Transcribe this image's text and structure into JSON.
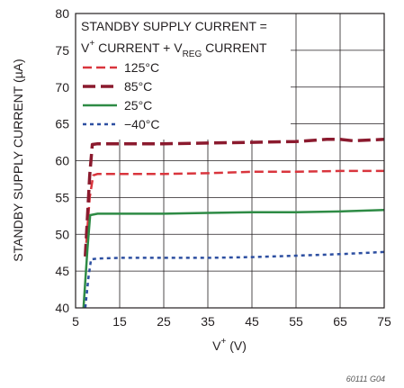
{
  "chart_data": {
    "type": "line",
    "xlabel": "V+ (V)",
    "xlabel_parts": {
      "base": "V",
      "sup": "+",
      "rest": " (V)"
    },
    "ylabel": "STANDBY SUPPLY CURRENT (µA)",
    "xlim": [
      5,
      75
    ],
    "ylim": [
      40,
      80
    ],
    "x_ticks": [
      5,
      15,
      25,
      35,
      45,
      55,
      65,
      75
    ],
    "y_ticks": [
      40,
      45,
      50,
      55,
      60,
      65,
      70,
      75,
      80
    ],
    "x_tick_labels": [
      "5",
      "15",
      "25",
      "35",
      "45",
      "55",
      "65",
      "75"
    ],
    "y_tick_labels": [
      "40",
      "45",
      "50",
      "55",
      "60",
      "65",
      "70",
      "75",
      "80"
    ],
    "grid": true,
    "legend_position": "top-left",
    "annotation": {
      "line1": "STANDBY SUPPLY CURRENT =",
      "line2_parts": [
        "V",
        "+",
        " CURRENT + V",
        "REG",
        " CURRENT"
      ]
    },
    "figure_note": "60111 G04",
    "series": [
      {
        "name": "125°C",
        "color": "#d9353d",
        "dash": "10,5",
        "width": 2.5,
        "x": [
          7.2,
          8.2,
          9,
          10,
          15,
          25,
          35,
          45,
          55,
          65,
          75
        ],
        "y": [
          47,
          55,
          58,
          58.2,
          58.2,
          58.2,
          58.3,
          58.5,
          58.5,
          58.6,
          58.6
        ]
      },
      {
        "name": "85°C",
        "color": "#8b1a2e",
        "dash": "14,6",
        "width": 3.5,
        "x": [
          7.2,
          8.2,
          8.8,
          10,
          15,
          25,
          35,
          45,
          55,
          62,
          65,
          68,
          75
        ],
        "y": [
          47,
          58,
          62.2,
          62.3,
          62.3,
          62.3,
          62.4,
          62.5,
          62.6,
          62.9,
          62.9,
          62.7,
          62.9
        ]
      },
      {
        "name": "25°C",
        "color": "#2e8b45",
        "dash": "",
        "width": 2.5,
        "x": [
          6.8,
          7.7,
          8.3,
          10,
          15,
          25,
          35,
          45,
          55,
          65,
          75
        ],
        "y": [
          40,
          48,
          52.6,
          52.8,
          52.8,
          52.8,
          52.9,
          53,
          53,
          53.1,
          53.3
        ]
      },
      {
        "name": "−40°C",
        "color": "#2d4fa1",
        "dash": "4,4",
        "width": 2.5,
        "x": [
          7.2,
          7.9,
          8.5,
          10,
          15,
          25,
          35,
          45,
          55,
          65,
          75
        ],
        "y": [
          40,
          44,
          46.6,
          46.7,
          46.8,
          46.8,
          46.8,
          46.9,
          47.1,
          47.3,
          47.6
        ]
      }
    ]
  }
}
